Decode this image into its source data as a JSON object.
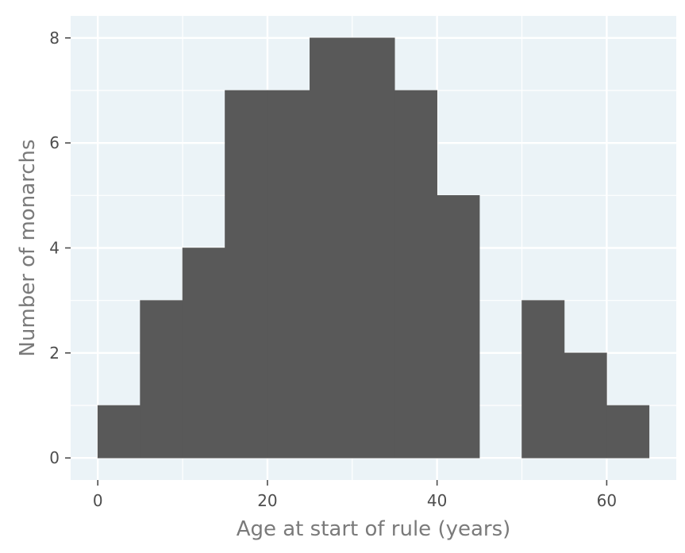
{
  "chart_data": {
    "type": "bar",
    "subtype": "histogram",
    "title": "",
    "xlabel": "Age at start of rule (years)",
    "ylabel": "Number of monarchs",
    "bins": [
      {
        "x0": 0,
        "x1": 5,
        "count": 1
      },
      {
        "x0": 5,
        "x1": 10,
        "count": 3
      },
      {
        "x0": 10,
        "x1": 15,
        "count": 4
      },
      {
        "x0": 15,
        "x1": 20,
        "count": 7
      },
      {
        "x0": 20,
        "x1": 25,
        "count": 7
      },
      {
        "x0": 25,
        "x1": 30,
        "count": 8
      },
      {
        "x0": 30,
        "x1": 35,
        "count": 8
      },
      {
        "x0": 35,
        "x1": 40,
        "count": 7
      },
      {
        "x0": 40,
        "x1": 45,
        "count": 5
      },
      {
        "x0": 45,
        "x1": 50,
        "count": 0
      },
      {
        "x0": 50,
        "x1": 55,
        "count": 3
      },
      {
        "x0": 55,
        "x1": 60,
        "count": 2
      },
      {
        "x0": 60,
        "x1": 65,
        "count": 1
      }
    ],
    "xlim": [
      -3.2,
      68.2
    ],
    "ylim": [
      -0.42,
      8.42
    ],
    "x_ticks": [
      0,
      20,
      40,
      60
    ],
    "x_tick_labels": [
      "0",
      "20",
      "40",
      "60"
    ],
    "y_ticks": [
      0,
      2,
      4,
      6,
      8
    ],
    "y_tick_labels": [
      "0",
      "2",
      "4",
      "6",
      "8"
    ],
    "grid": true,
    "legend": "none",
    "colors": {
      "bar": "#595959",
      "panel": "#ebf3f7",
      "grid": "#ffffff",
      "tick": "#4d4d4d",
      "axis_title": "#7a7a7a"
    }
  }
}
